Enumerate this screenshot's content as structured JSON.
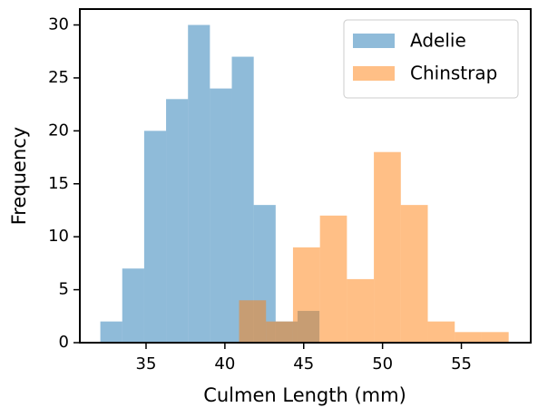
{
  "chart_data": {
    "type": "histogram",
    "xlabel": "Culmen Length (mm)",
    "ylabel": "Frequency",
    "series": [
      {
        "name": "Adelie",
        "color": "#1f77b4",
        "bins": [
          32.1,
          33.49,
          34.88,
          36.27,
          37.66,
          39.05,
          40.44,
          41.83,
          43.22,
          44.61,
          46.0
        ],
        "values": [
          2,
          7,
          20,
          23,
          30,
          24,
          27,
          13,
          2,
          3
        ]
      },
      {
        "name": "Chinstrap",
        "color": "#ff7f0e",
        "bins": [
          40.9,
          42.61,
          44.32,
          46.03,
          47.74,
          49.45,
          51.16,
          52.87,
          54.58,
          56.29,
          58.0
        ],
        "values": [
          4,
          2,
          9,
          12,
          6,
          18,
          13,
          2,
          1,
          1
        ]
      }
    ],
    "opacity": 0.5,
    "xlim": [
      30.8,
      59.4
    ],
    "xticks": [
      35,
      40,
      45,
      50,
      55
    ],
    "ylim": [
      0,
      31.5
    ],
    "yticks": [
      0,
      5,
      10,
      15,
      20,
      25,
      30
    ],
    "legend": "upper right"
  }
}
